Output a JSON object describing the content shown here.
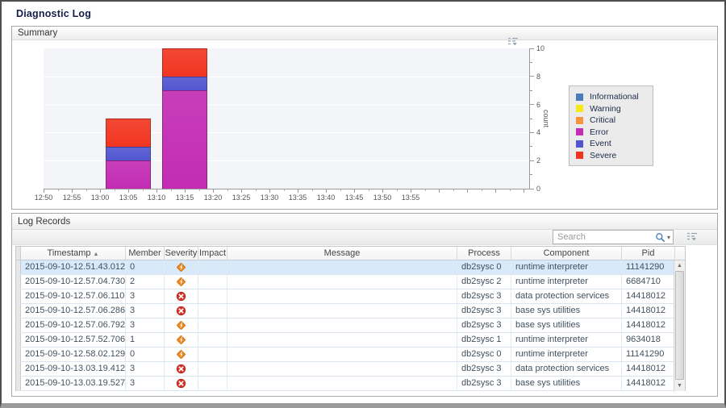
{
  "page": {
    "title": "Diagnostic Log"
  },
  "summary_panel": {
    "title": "Summary",
    "options_icon": "chart-menu-icon"
  },
  "chart_data": {
    "type": "bar",
    "stacked": true,
    "ylabel": "count",
    "ylim": [
      0,
      10
    ],
    "y_major_tick_step": 2,
    "x_tick_labels": [
      "12:50",
      "12:55",
      "13:00",
      "13:05",
      "13:10",
      "13:15",
      "13:20",
      "13:25",
      "13:30",
      "13:35",
      "13:40",
      "13:45",
      "13:50",
      "13:55"
    ],
    "x_tick_interval_minutes": 5,
    "grid": true,
    "legend_position": "right",
    "legend": [
      {
        "label": "Informational",
        "color": "#4a7cba"
      },
      {
        "label": "Warning",
        "color": "#f7e714"
      },
      {
        "label": "Critical",
        "color": "#f7943c"
      },
      {
        "label": "Error",
        "color": "#c32bb3"
      },
      {
        "label": "Event",
        "color": "#5156d0"
      },
      {
        "label": "Severe",
        "color": "#f23520"
      }
    ],
    "categories": [
      "13:05",
      "13:15"
    ],
    "series": [
      {
        "name": "Informational",
        "values": [
          0,
          0
        ]
      },
      {
        "name": "Warning",
        "values": [
          0,
          0
        ]
      },
      {
        "name": "Critical",
        "values": [
          0,
          0
        ]
      },
      {
        "name": "Error",
        "values": [
          2,
          7
        ]
      },
      {
        "name": "Event",
        "values": [
          1,
          1
        ]
      },
      {
        "name": "Severe",
        "values": [
          2,
          2
        ]
      }
    ],
    "bars": [
      {
        "x_start": "13:01",
        "x_end": "13:09",
        "total": 5,
        "segments": [
          {
            "series": "Error",
            "value": 2
          },
          {
            "series": "Event",
            "value": 1
          },
          {
            "series": "Severe",
            "value": 2
          }
        ]
      },
      {
        "x_start": "13:11",
        "x_end": "13:19",
        "total": 10,
        "segments": [
          {
            "series": "Error",
            "value": 7
          },
          {
            "series": "Event",
            "value": 1
          },
          {
            "series": "Severe",
            "value": 2
          }
        ]
      }
    ]
  },
  "log_records_panel": {
    "title": "Log Records",
    "search": {
      "placeholder": "Search"
    },
    "table": {
      "columns": [
        "Timestamp",
        "Member",
        "Severity",
        "Impact",
        "Message",
        "Process",
        "Component",
        "Pid"
      ],
      "sort": {
        "column": "Timestamp",
        "direction": "asc"
      },
      "severity_icon_names": {
        "warning": "orange-diamond-warning-icon",
        "error": "red-circle-error-icon"
      },
      "rows": [
        {
          "timestamp": "2015-09-10-12.51.43.012",
          "member": "0",
          "severity": "warning",
          "impact": "",
          "message": "",
          "process": "db2sysc 0",
          "component": "runtime interpreter",
          "pid": "11141290",
          "selected": true
        },
        {
          "timestamp": "2015-09-10-12.57.04.730",
          "member": "2",
          "severity": "warning",
          "impact": "",
          "message": "",
          "process": "db2sysc 2",
          "component": "runtime interpreter",
          "pid": "6684710",
          "selected": false
        },
        {
          "timestamp": "2015-09-10-12.57.06.110",
          "member": "3",
          "severity": "error",
          "impact": "",
          "message": "",
          "process": "db2sysc 3",
          "component": "data protection services",
          "pid": "14418012",
          "selected": false
        },
        {
          "timestamp": "2015-09-10-12.57.06.286",
          "member": "3",
          "severity": "error",
          "impact": "",
          "message": "",
          "process": "db2sysc 3",
          "component": "base sys utilities",
          "pid": "14418012",
          "selected": false
        },
        {
          "timestamp": "2015-09-10-12.57.06.792",
          "member": "3",
          "severity": "warning",
          "impact": "",
          "message": "",
          "process": "db2sysc 3",
          "component": "base sys utilities",
          "pid": "14418012",
          "selected": false
        },
        {
          "timestamp": "2015-09-10-12.57.52.706",
          "member": "1",
          "severity": "warning",
          "impact": "",
          "message": "",
          "process": "db2sysc 1",
          "component": "runtime interpreter",
          "pid": "9634018",
          "selected": false
        },
        {
          "timestamp": "2015-09-10-12.58.02.129",
          "member": "0",
          "severity": "warning",
          "impact": "",
          "message": "",
          "process": "db2sysc 0",
          "component": "runtime interpreter",
          "pid": "11141290",
          "selected": false
        },
        {
          "timestamp": "2015-09-10-13.03.19.412",
          "member": "3",
          "severity": "error",
          "impact": "",
          "message": "",
          "process": "db2sysc 3",
          "component": "data protection services",
          "pid": "14418012",
          "selected": false
        },
        {
          "timestamp": "2015-09-10-13.03.19.527",
          "member": "3",
          "severity": "error",
          "impact": "",
          "message": "",
          "process": "db2sysc 3",
          "component": "base sys utilities",
          "pid": "14418012",
          "selected": false
        }
      ]
    }
  }
}
